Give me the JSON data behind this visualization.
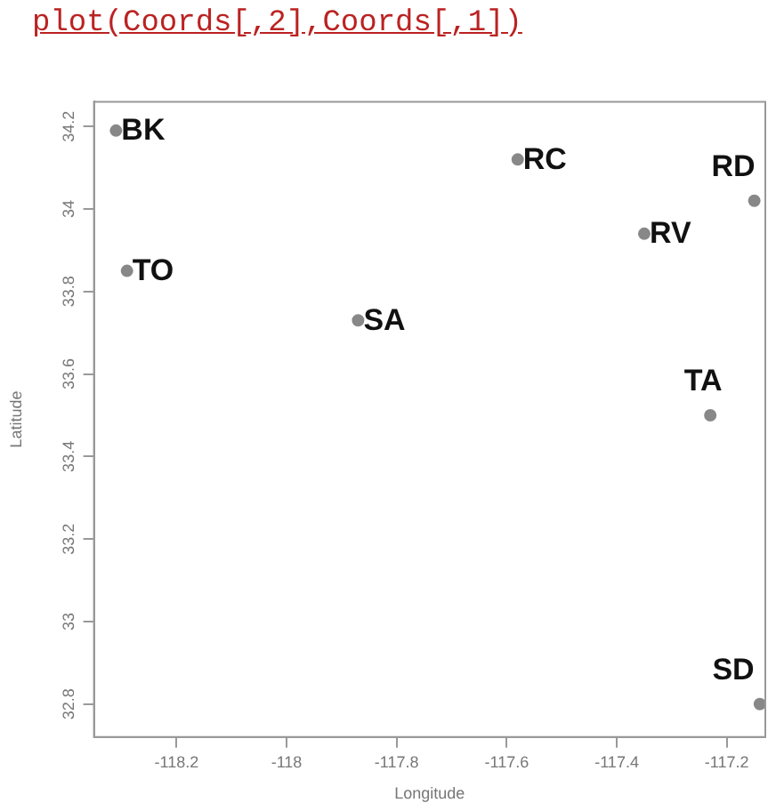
{
  "chart_data": {
    "type": "scatter",
    "title": "plot(Coords[,2],Coords[,1])",
    "xlabel": "Longitude",
    "ylabel": "Latitude",
    "x": [
      -118.31,
      -117.58,
      -117.35,
      -117.15,
      -118.29,
      -117.87,
      -117.23,
      -117.14
    ],
    "series": [
      {
        "color": "#888888",
        "values": [
          34.19,
          34.12,
          33.94,
          34.02,
          33.85,
          33.73,
          33.5,
          32.8
        ],
        "value_labels": [
          "BK",
          "RC",
          "RV",
          "RD",
          "TO",
          "SA",
          "TA",
          "SD"
        ]
      }
    ],
    "xlim": [
      -118.35,
      -117.13
    ],
    "ylim": [
      32.72,
      34.26
    ],
    "xticks": [
      -118.2,
      -118.0,
      -117.8,
      -117.6,
      -117.4,
      -117.2
    ],
    "yticks": [
      32.8,
      33.0,
      33.2,
      33.4,
      33.6,
      33.8,
      34.0,
      34.2
    ],
    "grid": false,
    "legend": false,
    "marker": "circle"
  }
}
